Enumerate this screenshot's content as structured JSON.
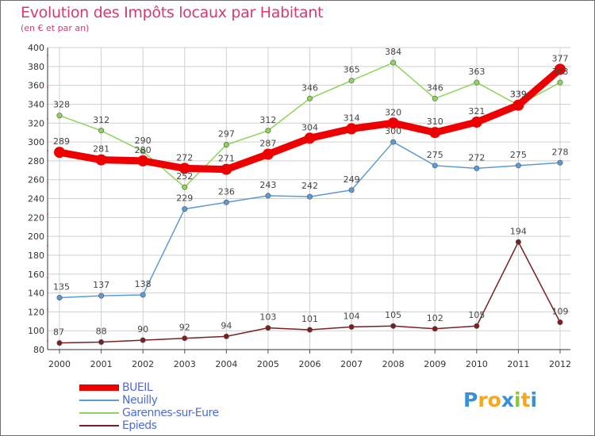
{
  "header": {
    "title": "Evolution des Impôts locaux par Habitant",
    "subtitle": "(en € et par an)"
  },
  "colors": {
    "title": "#d63a6e",
    "legend_text": "#4e6bd8",
    "grid": "#cfcfcf"
  },
  "chart_data": {
    "type": "line",
    "x": [
      "2000",
      "2001",
      "2002",
      "2003",
      "2004",
      "2005",
      "2006",
      "2007",
      "2008",
      "2009",
      "2010",
      "2011",
      "2012"
    ],
    "ylim": [
      80,
      400
    ],
    "yticks": [
      80,
      100,
      120,
      140,
      160,
      180,
      200,
      220,
      240,
      260,
      280,
      300,
      320,
      340,
      360,
      380,
      400
    ],
    "grid": true,
    "legend_position": "bottom-left",
    "series": [
      {
        "name": "BUEIL",
        "color": "#ee0000",
        "values": [
          289,
          281,
          280,
          272,
          271,
          287,
          304,
          314,
          320,
          310,
          321,
          339,
          377
        ]
      },
      {
        "name": "Neuilly",
        "color": "#5b9bd5",
        "values": [
          135,
          137,
          138,
          229,
          236,
          243,
          242,
          249,
          300,
          275,
          272,
          275,
          278
        ]
      },
      {
        "name": "Garennes-sur-Eure",
        "color": "#8fd45a",
        "values": [
          328,
          312,
          290,
          252,
          297,
          312,
          346,
          365,
          384,
          346,
          363,
          339,
          363
        ]
      },
      {
        "name": "Epieds",
        "color": "#7a2020",
        "values": [
          87,
          88,
          90,
          92,
          94,
          103,
          101,
          104,
          105,
          102,
          105,
          194,
          109
        ]
      }
    ]
  },
  "logo": {
    "letters": [
      "P",
      "r",
      "o",
      "x",
      "i",
      "t",
      "i"
    ],
    "colors": [
      "#3a8fd8",
      "#f5a623",
      "#f5a623",
      "#3a8fd8",
      "#8cc63f",
      "#f5a623",
      "#3a8fd8"
    ]
  }
}
